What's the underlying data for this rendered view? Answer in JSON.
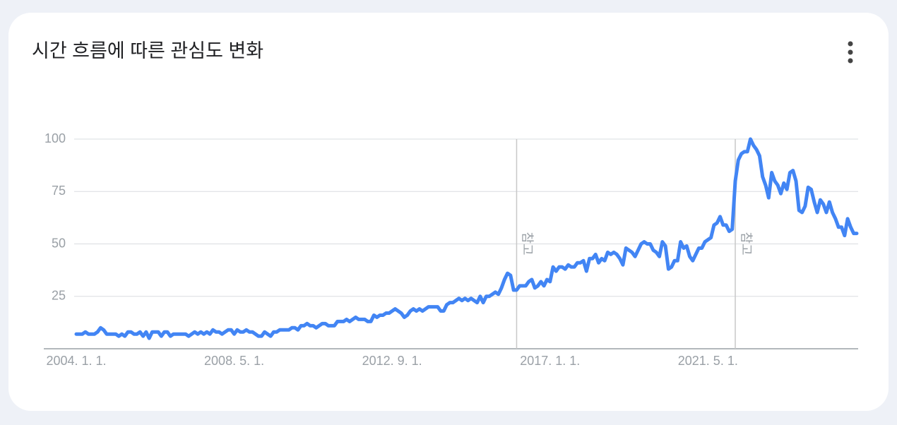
{
  "chart_data": {
    "type": "line",
    "title": "시간 흐름에 따른 관심도 변화",
    "categories": [
      "2004. 1. 1.",
      null,
      null,
      null,
      null,
      null,
      null,
      null,
      null,
      null,
      null,
      null,
      null,
      null,
      null,
      null,
      null,
      null,
      null,
      null,
      null,
      null,
      null,
      null,
      null,
      null,
      null,
      null,
      null,
      null,
      null,
      null,
      null,
      null,
      null,
      null,
      null,
      null,
      null,
      null,
      null,
      null,
      null,
      null,
      null,
      null,
      null,
      null,
      null,
      null,
      null,
      null,
      "2008. 5. 1.",
      null,
      null,
      null,
      null,
      null,
      null,
      null,
      null,
      null,
      null,
      null,
      null,
      null,
      null,
      null,
      null,
      null,
      null,
      null,
      null,
      null,
      null,
      null,
      null,
      null,
      null,
      null,
      null,
      null,
      null,
      null,
      null,
      null,
      null,
      null,
      null,
      null,
      null,
      null,
      null,
      null,
      null,
      null,
      null,
      null,
      null,
      null,
      null,
      null,
      null,
      null,
      "2012. 9. 1.",
      null,
      null,
      null,
      null,
      null,
      null,
      null,
      null,
      null,
      null,
      null,
      null,
      null,
      null,
      null,
      null,
      null,
      null,
      null,
      null,
      null,
      null,
      null,
      null,
      null,
      null,
      null,
      null,
      null,
      null,
      null,
      null,
      null,
      null,
      null,
      null,
      null,
      null,
      null,
      null,
      null,
      null,
      null,
      null,
      null,
      null,
      null,
      null,
      null,
      null,
      null,
      "2017. 1. 1.",
      null,
      null,
      null,
      null,
      null,
      null,
      null,
      null,
      null,
      null,
      null,
      null,
      null,
      null,
      null,
      null,
      null,
      null,
      null,
      null,
      null,
      null,
      null,
      null,
      null,
      null,
      null,
      null,
      null,
      null,
      null,
      null,
      null,
      null,
      null,
      null,
      null,
      null,
      null,
      null,
      null,
      null,
      null,
      null,
      null,
      null,
      null,
      null,
      null,
      null,
      null,
      "2021. 5. 1.",
      null,
      null,
      null,
      null,
      null,
      null,
      null,
      null,
      null,
      null,
      null,
      null,
      null,
      null,
      null,
      null,
      null,
      null,
      null,
      null,
      null,
      null,
      null,
      null,
      null,
      null,
      null,
      null,
      null,
      null,
      null,
      null,
      null,
      null,
      null,
      null,
      null,
      null,
      null,
      null,
      null,
      null,
      null,
      null,
      null,
      null,
      null,
      null,
      null
    ],
    "values": [
      7,
      7,
      7,
      8,
      7,
      7,
      7,
      8,
      10,
      9,
      7,
      7,
      7,
      7,
      6,
      7,
      6,
      8,
      8,
      7,
      7,
      8,
      6,
      8,
      5,
      8,
      8,
      8,
      6,
      8,
      8,
      6,
      7,
      7,
      7,
      7,
      7,
      6,
      7,
      8,
      7,
      8,
      7,
      8,
      7,
      9,
      8,
      8,
      7,
      8,
      9,
      9,
      7,
      9,
      8,
      8,
      9,
      8,
      8,
      7,
      6,
      6,
      8,
      7,
      6,
      8,
      8,
      9,
      9,
      9,
      9,
      10,
      10,
      9,
      11,
      11,
      12,
      11,
      11,
      10,
      11,
      12,
      12,
      11,
      11,
      11,
      13,
      13,
      13,
      14,
      13,
      14,
      15,
      14,
      14,
      14,
      13,
      13,
      16,
      15,
      16,
      16,
      17,
      17,
      18,
      19,
      18,
      17,
      15,
      16,
      18,
      19,
      18,
      19,
      18,
      19,
      20,
      20,
      20,
      20,
      18,
      18,
      21,
      22,
      22,
      23,
      24,
      23,
      24,
      23,
      24,
      23,
      22,
      25,
      22,
      25,
      25,
      26,
      27,
      26,
      29,
      33,
      36,
      35,
      28,
      28,
      30,
      30,
      30,
      32,
      33,
      29,
      30,
      32,
      30,
      33,
      32,
      39,
      37,
      39,
      39,
      38,
      40,
      39,
      39,
      41,
      41,
      42,
      37,
      43,
      43,
      45,
      41,
      43,
      42,
      46,
      45,
      46,
      45,
      43,
      40,
      48,
      47,
      46,
      44,
      47,
      50,
      51,
      50,
      50,
      47,
      46,
      44,
      51,
      49,
      38,
      39,
      42,
      42,
      51,
      48,
      49,
      44,
      42,
      45,
      48,
      48,
      51,
      52,
      53,
      59,
      60,
      63,
      59,
      59,
      56,
      57,
      80,
      90,
      93,
      94,
      94,
      100,
      97,
      95,
      92,
      82,
      78,
      72,
      84,
      80,
      78,
      74,
      79,
      76,
      84,
      85,
      80,
      66,
      65,
      68,
      77,
      76,
      70,
      65,
      71,
      69,
      65,
      70,
      65,
      62,
      58,
      58,
      54,
      62,
      58,
      55,
      55
    ],
    "color": "#4285f4",
    "ylim": [
      0,
      100
    ],
    "yticks": [
      25,
      50,
      75,
      100
    ],
    "grid": true,
    "annotations": [
      {
        "text": "참고",
        "index": 145
      },
      {
        "text": "참고",
        "index": 217
      }
    ]
  }
}
